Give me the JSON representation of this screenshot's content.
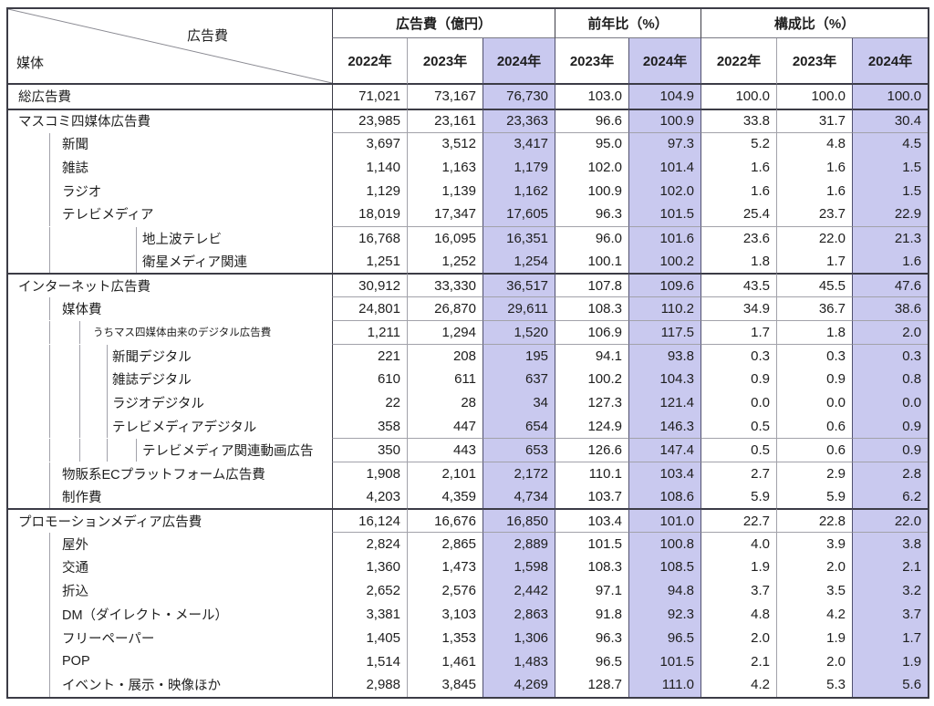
{
  "chart_data": {
    "type": "table",
    "corner": {
      "top": "広告費",
      "bottom": "媒体"
    },
    "groups": [
      {
        "label": "広告費（億円）",
        "span": 3
      },
      {
        "label": "前年比（%）",
        "span": 2
      },
      {
        "label": "構成比（%）",
        "span": 3
      }
    ],
    "year_columns": [
      {
        "label": "2022年",
        "highlight": false
      },
      {
        "label": "2023年",
        "highlight": false
      },
      {
        "label": "2024年",
        "highlight": true
      },
      {
        "label": "2023年",
        "highlight": false
      },
      {
        "label": "2024年",
        "highlight": true
      },
      {
        "label": "2022年",
        "highlight": false
      },
      {
        "label": "2023年",
        "highlight": false
      },
      {
        "label": "2024年",
        "highlight": true
      }
    ],
    "highlight_columns": [
      2,
      4,
      7
    ],
    "rows": [
      {
        "label": "総広告費",
        "level": 0,
        "values": [
          "71,021",
          "73,167",
          "76,730",
          "103.0",
          "104.9",
          "100.0",
          "100.0",
          "100.0"
        ]
      },
      {
        "label": "マスコミ四媒体広告費",
        "level": 0,
        "values": [
          "23,985",
          "23,161",
          "23,363",
          "96.6",
          "100.9",
          "33.8",
          "31.7",
          "30.4"
        ]
      },
      {
        "label": "新聞",
        "level": 1,
        "values": [
          "3,697",
          "3,512",
          "3,417",
          "95.0",
          "97.3",
          "5.2",
          "4.8",
          "4.5"
        ]
      },
      {
        "label": "雑誌",
        "level": 1,
        "values": [
          "1,140",
          "1,163",
          "1,179",
          "102.0",
          "101.4",
          "1.6",
          "1.6",
          "1.5"
        ]
      },
      {
        "label": "ラジオ",
        "level": 1,
        "values": [
          "1,129",
          "1,139",
          "1,162",
          "100.9",
          "102.0",
          "1.6",
          "1.6",
          "1.5"
        ]
      },
      {
        "label": "テレビメディア",
        "level": 1,
        "values": [
          "18,019",
          "17,347",
          "17,605",
          "96.3",
          "101.5",
          "25.4",
          "23.7",
          "22.9"
        ]
      },
      {
        "label": "地上波テレビ",
        "level": 2,
        "values": [
          "16,768",
          "16,095",
          "16,351",
          "96.0",
          "101.6",
          "23.6",
          "22.0",
          "21.3"
        ]
      },
      {
        "label": "衛星メディア関連",
        "level": 2,
        "values": [
          "1,251",
          "1,252",
          "1,254",
          "100.1",
          "100.2",
          "1.8",
          "1.7",
          "1.6"
        ]
      },
      {
        "label": "インターネット広告費",
        "level": 0,
        "values": [
          "30,912",
          "33,330",
          "36,517",
          "107.8",
          "109.6",
          "43.5",
          "45.5",
          "47.6"
        ]
      },
      {
        "label": "媒体費",
        "level": 1,
        "values": [
          "24,801",
          "26,870",
          "29,611",
          "108.3",
          "110.2",
          "34.9",
          "36.7",
          "38.6"
        ]
      },
      {
        "label": "うちマス四媒体由来のデジタル広告費",
        "level": 2,
        "values": [
          "1,211",
          "1,294",
          "1,520",
          "106.9",
          "117.5",
          "1.7",
          "1.8",
          "2.0"
        ]
      },
      {
        "label": "新聞デジタル",
        "level": 3,
        "values": [
          "221",
          "208",
          "195",
          "94.1",
          "93.8",
          "0.3",
          "0.3",
          "0.3"
        ]
      },
      {
        "label": "雑誌デジタル",
        "level": 3,
        "values": [
          "610",
          "611",
          "637",
          "100.2",
          "104.3",
          "0.9",
          "0.9",
          "0.8"
        ]
      },
      {
        "label": "ラジオデジタル",
        "level": 3,
        "values": [
          "22",
          "28",
          "34",
          "127.3",
          "121.4",
          "0.0",
          "0.0",
          "0.0"
        ]
      },
      {
        "label": "テレビメディアデジタル",
        "level": 3,
        "values": [
          "358",
          "447",
          "654",
          "124.9",
          "146.3",
          "0.5",
          "0.6",
          "0.9"
        ]
      },
      {
        "label": "テレビメディア関連動画広告",
        "level": 4,
        "values": [
          "350",
          "443",
          "653",
          "126.6",
          "147.4",
          "0.5",
          "0.6",
          "0.9"
        ]
      },
      {
        "label": "物販系ECプラットフォーム広告費",
        "level": 1,
        "values": [
          "1,908",
          "2,101",
          "2,172",
          "110.1",
          "103.4",
          "2.7",
          "2.9",
          "2.8"
        ]
      },
      {
        "label": "制作費",
        "level": 1,
        "values": [
          "4,203",
          "4,359",
          "4,734",
          "103.7",
          "108.6",
          "5.9",
          "5.9",
          "6.2"
        ]
      },
      {
        "label": "プロモーションメディア広告費",
        "level": 0,
        "values": [
          "16,124",
          "16,676",
          "16,850",
          "103.4",
          "101.0",
          "22.7",
          "22.8",
          "22.0"
        ]
      },
      {
        "label": "屋外",
        "level": 1,
        "values": [
          "2,824",
          "2,865",
          "2,889",
          "101.5",
          "100.8",
          "4.0",
          "3.9",
          "3.8"
        ]
      },
      {
        "label": "交通",
        "level": 1,
        "values": [
          "1,360",
          "1,473",
          "1,598",
          "108.3",
          "108.5",
          "1.9",
          "2.0",
          "2.1"
        ]
      },
      {
        "label": "折込",
        "level": 1,
        "values": [
          "2,652",
          "2,576",
          "2,442",
          "97.1",
          "94.8",
          "3.7",
          "3.5",
          "3.2"
        ]
      },
      {
        "label": "DM（ダイレクト・メール）",
        "level": 1,
        "values": [
          "3,381",
          "3,103",
          "2,863",
          "91.8",
          "92.3",
          "4.8",
          "4.2",
          "3.7"
        ]
      },
      {
        "label": "フリーペーパー",
        "level": 1,
        "values": [
          "1,405",
          "1,353",
          "1,306",
          "96.3",
          "96.5",
          "2.0",
          "1.9",
          "1.7"
        ]
      },
      {
        "label": "POP",
        "level": 1,
        "values": [
          "1,514",
          "1,461",
          "1,483",
          "96.5",
          "101.5",
          "2.1",
          "2.0",
          "1.9"
        ]
      },
      {
        "label": "イベント・展示・映像ほか",
        "level": 1,
        "values": [
          "2,988",
          "3,845",
          "4,269",
          "128.7",
          "111.0",
          "4.2",
          "5.3",
          "5.6"
        ]
      }
    ],
    "colors": {
      "highlight_bg": "#c9c9ef",
      "highlight_border": "#50506e",
      "dark_border": "#3c3c46",
      "light_border": "#a2a2aa",
      "text": "#1e1e1e"
    }
  }
}
